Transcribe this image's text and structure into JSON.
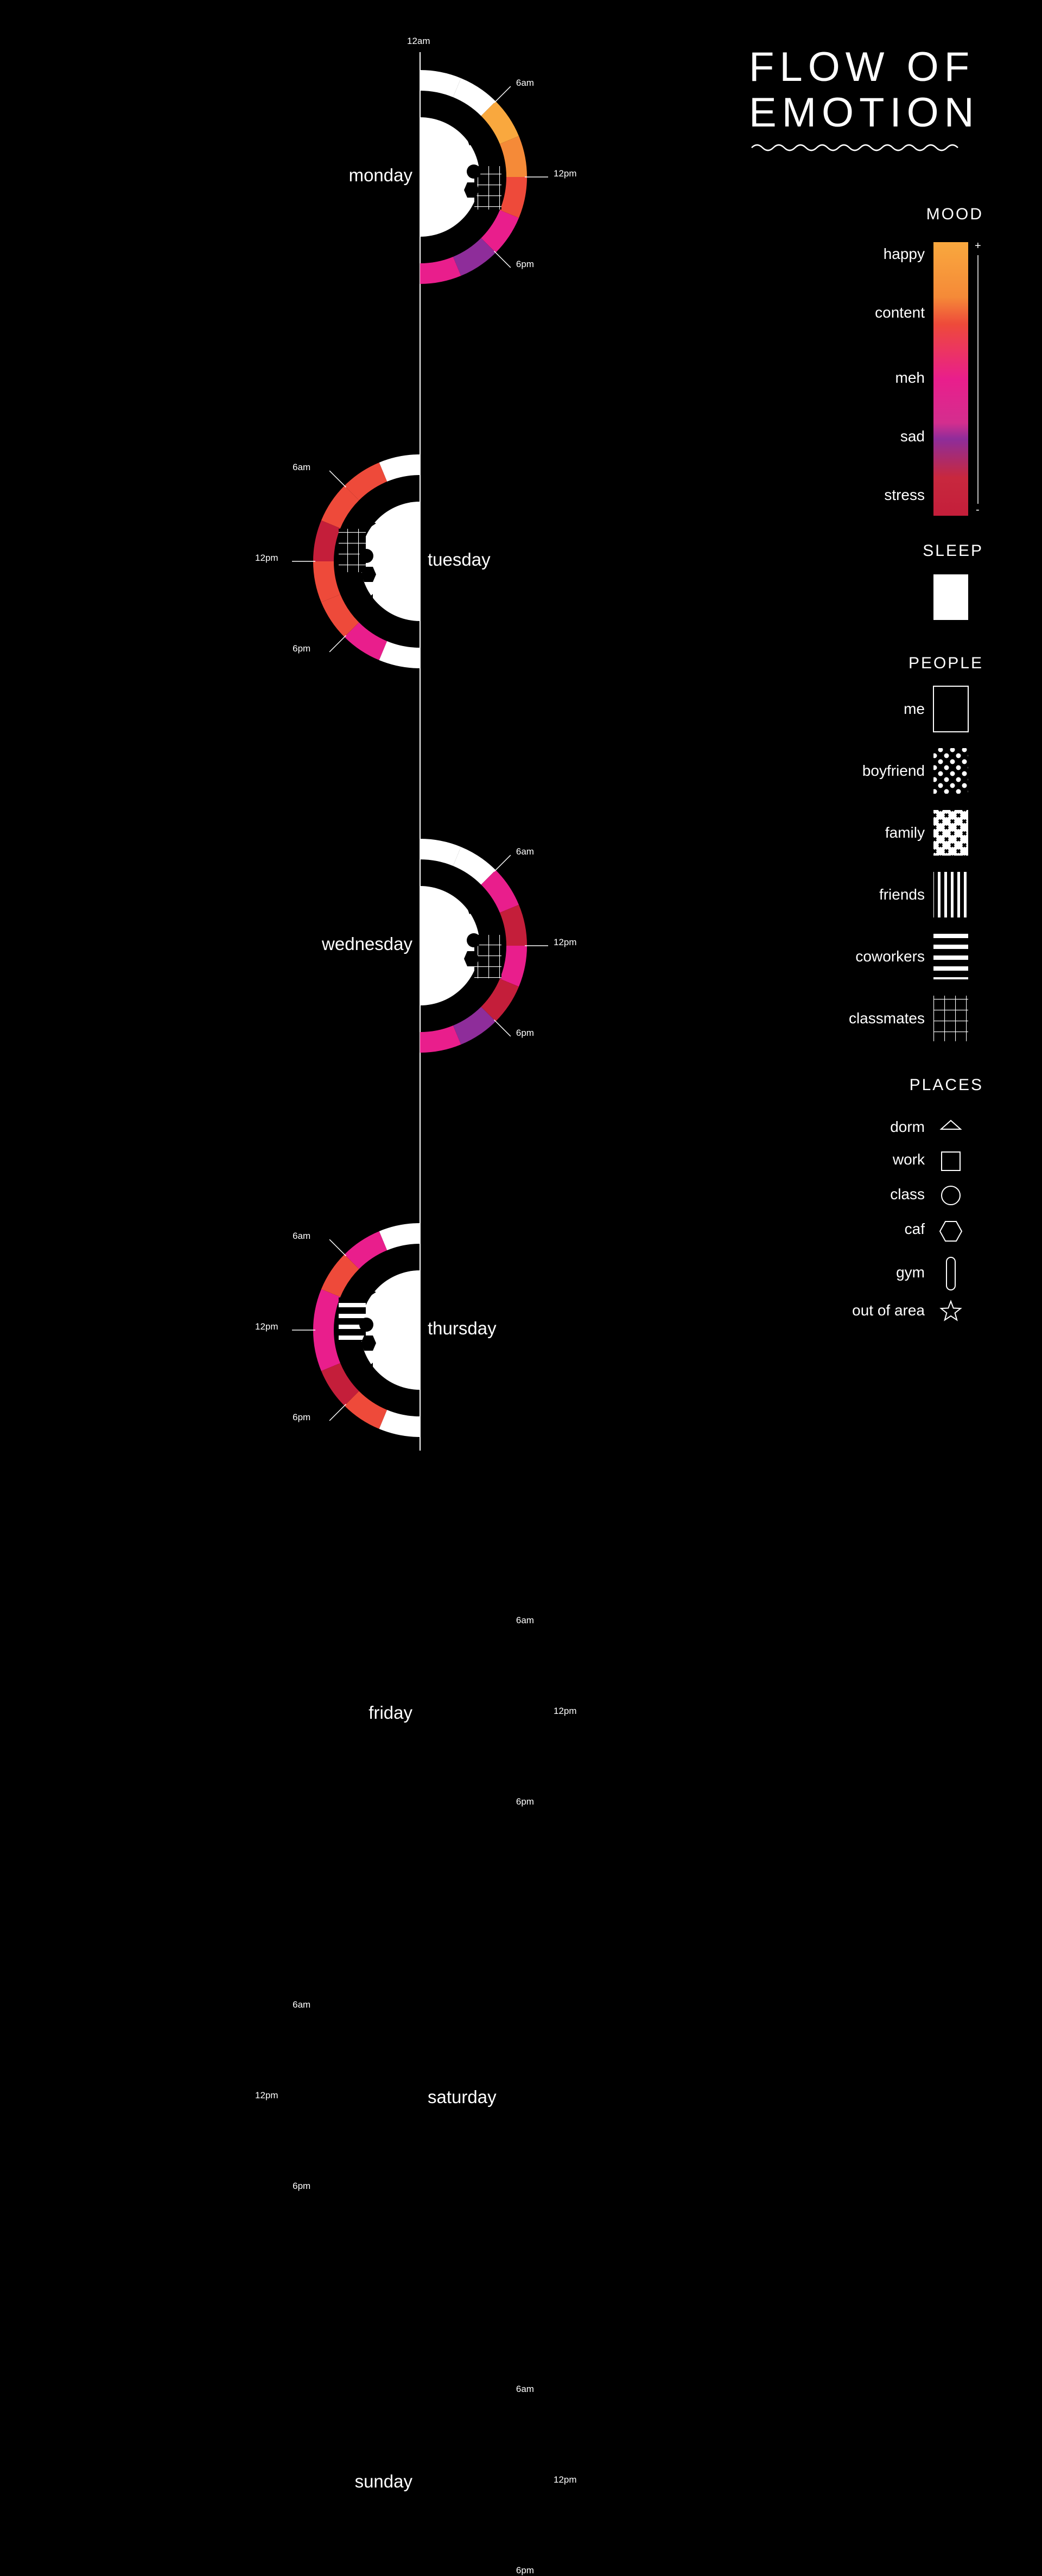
{
  "title_line1": "FLOW OF",
  "title_line2": "EMOTION",
  "time_labels": {
    "midnight": "12am",
    "morning": "6am",
    "noon": "12pm",
    "evening": "6pm"
  },
  "days": [
    {
      "name": "monday",
      "side": "right"
    },
    {
      "name": "tuesday",
      "side": "left"
    },
    {
      "name": "wednesday",
      "side": "right"
    },
    {
      "name": "thursday",
      "side": "left"
    },
    {
      "name": "friday",
      "side": "right"
    },
    {
      "name": "saturday",
      "side": "left"
    },
    {
      "name": "sunday",
      "side": "right"
    }
  ],
  "legend": {
    "mood": {
      "heading": "MOOD",
      "plus": "+",
      "minus": "-",
      "levels": [
        "happy",
        "content",
        "meh",
        "sad",
        "stress"
      ]
    },
    "sleep": {
      "heading": "SLEEP"
    },
    "people": {
      "heading": "PEOPLE",
      "items": [
        "me",
        "boyfriend",
        "family",
        "friends",
        "coworkers",
        "classmates"
      ]
    },
    "places": {
      "heading": "PLACES",
      "items": [
        "dorm",
        "work",
        "class",
        "caf",
        "gym",
        "out of area"
      ]
    }
  },
  "colors": {
    "background": "#000000",
    "happy": "#F9A83E",
    "content": "#EE4A3A",
    "meh": "#E91E8C",
    "sad": "#8E2D9A",
    "stress": "#C41E3A",
    "sleep": "#FFFFFF"
  }
}
